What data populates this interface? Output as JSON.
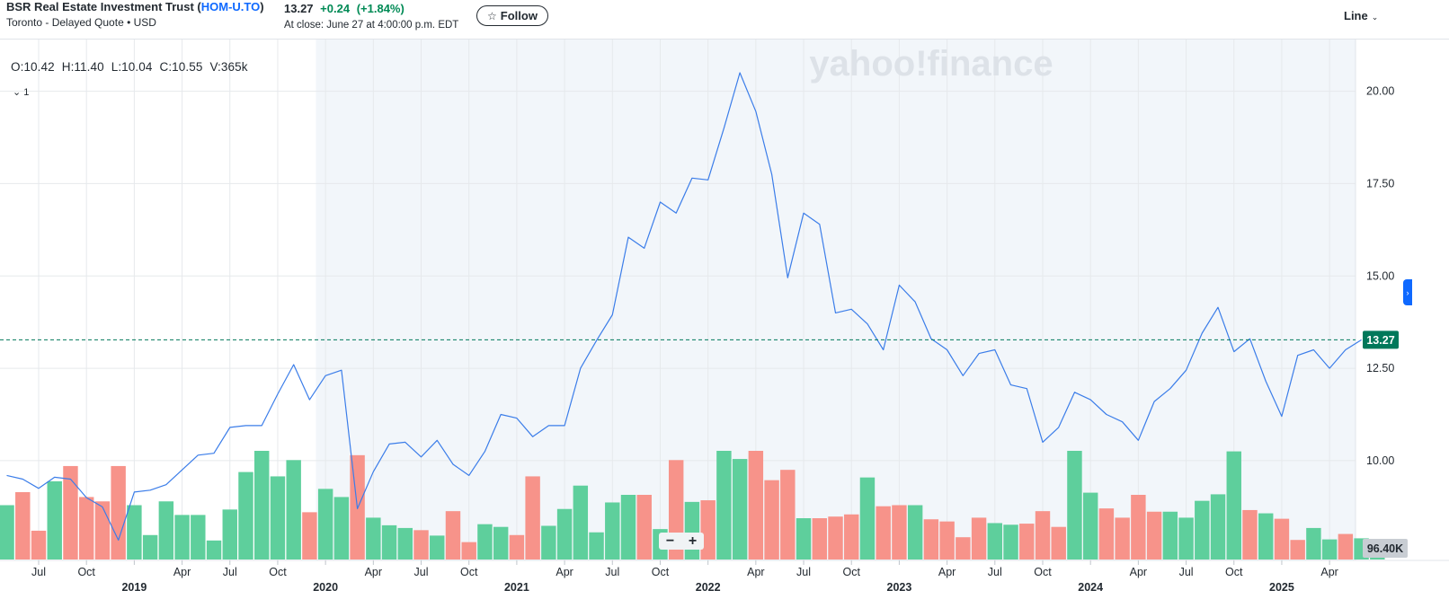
{
  "header": {
    "company": "BSR Real Estate Investment Trust (",
    "ticker": "HOM-U.TO",
    "company_suffix": ")",
    "exchange_info": "Toronto - Delayed Quote • USD",
    "price": "13.27",
    "change": "+0.24",
    "change_pct": "(+1.84%)",
    "close_info": "At close: June 27 at 4:00:00 p.m. EDT",
    "follow_label": "Follow",
    "chart_type_label": "Line"
  },
  "ohlc": {
    "open": "O:10.42",
    "high": "H:11.40",
    "low": "L:10.04",
    "close": "C:10.55",
    "volume": "V:365k"
  },
  "study_label": "1",
  "watermark": "yahoo!finance",
  "zoom": {
    "minus": "−",
    "plus": "+"
  },
  "colors": {
    "line": "#3b7de9",
    "vol_up": "#5ecf9c",
    "vol_down": "#f7938a",
    "shade": "#f2f6fa",
    "price_badge": "#00785a",
    "vol_badge": "#c8cdd3",
    "grid": "#e6e9ec"
  },
  "chart_data": {
    "type": "line",
    "y_axis": {
      "ticks": [
        "10.00",
        "12.50",
        "15.00",
        "17.50",
        "20.00"
      ],
      "range": [
        7.3,
        21.4
      ]
    },
    "last_price_label": "13.27",
    "last_price": 13.27,
    "volume_label": "96.40K",
    "x_ticks": [
      {
        "label": "Jul",
        "date": "2018-07"
      },
      {
        "label": "Oct",
        "date": "2018-10"
      },
      {
        "label": "2019",
        "date": "2019-01",
        "year": true
      },
      {
        "label": "Apr",
        "date": "2019-04"
      },
      {
        "label": "Jul",
        "date": "2019-07"
      },
      {
        "label": "Oct",
        "date": "2019-10"
      },
      {
        "label": "2020",
        "date": "2020-01",
        "year": true
      },
      {
        "label": "Apr",
        "date": "2020-04"
      },
      {
        "label": "Jul",
        "date": "2020-07"
      },
      {
        "label": "Oct",
        "date": "2020-10"
      },
      {
        "label": "2021",
        "date": "2021-01",
        "year": true
      },
      {
        "label": "Apr",
        "date": "2021-04"
      },
      {
        "label": "Jul",
        "date": "2021-07"
      },
      {
        "label": "Oct",
        "date": "2021-10"
      },
      {
        "label": "2022",
        "date": "2022-01",
        "year": true
      },
      {
        "label": "Apr",
        "date": "2022-04"
      },
      {
        "label": "Jul",
        "date": "2022-07"
      },
      {
        "label": "Oct",
        "date": "2022-10"
      },
      {
        "label": "2023",
        "date": "2023-01",
        "year": true
      },
      {
        "label": "Apr",
        "date": "2023-04"
      },
      {
        "label": "Jul",
        "date": "2023-07"
      },
      {
        "label": "Oct",
        "date": "2023-10"
      },
      {
        "label": "2024",
        "date": "2024-01",
        "year": true
      },
      {
        "label": "Apr",
        "date": "2024-04"
      },
      {
        "label": "Jul",
        "date": "2024-07"
      },
      {
        "label": "Oct",
        "date": "2024-10"
      },
      {
        "label": "2025",
        "date": "2025-01",
        "year": true
      },
      {
        "label": "Apr",
        "date": "2025-04"
      }
    ],
    "shaded_range": [
      "2020-01",
      "2025-06"
    ],
    "series": [
      {
        "type": "line",
        "points": [
          {
            "date": "2018-05",
            "value": 9.6
          },
          {
            "date": "2018-06",
            "value": 9.5
          },
          {
            "date": "2018-07",
            "value": 9.25
          },
          {
            "date": "2018-08",
            "value": 9.55
          },
          {
            "date": "2018-09",
            "value": 9.5
          },
          {
            "date": "2018-10",
            "value": 9.0
          },
          {
            "date": "2018-11",
            "value": 8.75
          },
          {
            "date": "2018-12",
            "value": 7.85
          },
          {
            "date": "2019-01",
            "value": 9.15
          },
          {
            "date": "2019-02",
            "value": 9.2
          },
          {
            "date": "2019-03",
            "value": 9.35
          },
          {
            "date": "2019-04",
            "value": 9.75
          },
          {
            "date": "2019-05",
            "value": 10.15
          },
          {
            "date": "2019-06",
            "value": 10.2
          },
          {
            "date": "2019-07",
            "value": 10.9
          },
          {
            "date": "2019-08",
            "value": 10.95
          },
          {
            "date": "2019-09",
            "value": 10.95
          },
          {
            "date": "2019-10",
            "value": 11.8
          },
          {
            "date": "2019-11",
            "value": 12.6
          },
          {
            "date": "2019-12",
            "value": 11.65
          },
          {
            "date": "2020-01",
            "value": 12.3
          },
          {
            "date": "2020-02",
            "value": 12.45
          },
          {
            "date": "2020-03",
            "value": 8.7
          },
          {
            "date": "2020-04",
            "value": 9.7
          },
          {
            "date": "2020-05",
            "value": 10.45
          },
          {
            "date": "2020-06",
            "value": 10.5
          },
          {
            "date": "2020-07",
            "value": 10.1
          },
          {
            "date": "2020-08",
            "value": 10.55
          },
          {
            "date": "2020-09",
            "value": 9.9
          },
          {
            "date": "2020-10",
            "value": 9.6
          },
          {
            "date": "2020-11",
            "value": 10.25
          },
          {
            "date": "2020-12",
            "value": 11.25
          },
          {
            "date": "2021-01",
            "value": 11.15
          },
          {
            "date": "2021-02",
            "value": 10.65
          },
          {
            "date": "2021-03",
            "value": 10.95
          },
          {
            "date": "2021-04",
            "value": 10.95
          },
          {
            "date": "2021-05",
            "value": 12.5
          },
          {
            "date": "2021-06",
            "value": 13.25
          },
          {
            "date": "2021-07",
            "value": 13.95
          },
          {
            "date": "2021-08",
            "value": 16.05
          },
          {
            "date": "2021-09",
            "value": 15.75
          },
          {
            "date": "2021-10",
            "value": 17.0
          },
          {
            "date": "2021-11",
            "value": 16.7
          },
          {
            "date": "2021-12",
            "value": 17.65
          },
          {
            "date": "2022-01",
            "value": 17.6
          },
          {
            "date": "2022-02",
            "value": 19.0
          },
          {
            "date": "2022-03",
            "value": 20.5
          },
          {
            "date": "2022-04",
            "value": 19.45
          },
          {
            "date": "2022-05",
            "value": 17.75
          },
          {
            "date": "2022-06",
            "value": 14.95
          },
          {
            "date": "2022-07",
            "value": 16.7
          },
          {
            "date": "2022-08",
            "value": 16.4
          },
          {
            "date": "2022-09",
            "value": 14.0
          },
          {
            "date": "2022-10",
            "value": 14.1
          },
          {
            "date": "2022-11",
            "value": 13.7
          },
          {
            "date": "2022-12",
            "value": 13.0
          },
          {
            "date": "2023-01",
            "value": 14.75
          },
          {
            "date": "2023-02",
            "value": 14.3
          },
          {
            "date": "2023-03",
            "value": 13.3
          },
          {
            "date": "2023-04",
            "value": 13.0
          },
          {
            "date": "2023-05",
            "value": 12.3
          },
          {
            "date": "2023-06",
            "value": 12.9
          },
          {
            "date": "2023-07",
            "value": 13.0
          },
          {
            "date": "2023-08",
            "value": 12.05
          },
          {
            "date": "2023-09",
            "value": 11.95
          },
          {
            "date": "2023-10",
            "value": 10.5
          },
          {
            "date": "2023-11",
            "value": 10.9
          },
          {
            "date": "2023-12",
            "value": 11.85
          },
          {
            "date": "2024-01",
            "value": 11.65
          },
          {
            "date": "2024-02",
            "value": 11.25
          },
          {
            "date": "2024-03",
            "value": 11.05
          },
          {
            "date": "2024-04",
            "value": 10.55
          },
          {
            "date": "2024-05",
            "value": 11.6
          },
          {
            "date": "2024-06",
            "value": 11.95
          },
          {
            "date": "2024-07",
            "value": 12.45
          },
          {
            "date": "2024-08",
            "value": 13.45
          },
          {
            "date": "2024-09",
            "value": 14.15
          },
          {
            "date": "2024-10",
            "value": 12.95
          },
          {
            "date": "2024-11",
            "value": 13.3
          },
          {
            "date": "2024-12",
            "value": 12.15
          },
          {
            "date": "2025-01",
            "value": 11.2
          },
          {
            "date": "2025-02",
            "value": 12.85
          },
          {
            "date": "2025-03",
            "value": 13.0
          },
          {
            "date": "2025-04",
            "value": 12.5
          },
          {
            "date": "2025-05",
            "value": 13.0
          },
          {
            "date": "2025-06",
            "value": 13.27
          }
        ]
      },
      {
        "type": "bar",
        "volume_max": 1000,
        "bars": [
          {
            "date": "2018-05",
            "value": 500,
            "dir": "up"
          },
          {
            "date": "2018-06",
            "value": 620,
            "dir": "down"
          },
          {
            "date": "2018-07",
            "value": 265,
            "dir": "down"
          },
          {
            "date": "2018-08",
            "value": 720,
            "dir": "up"
          },
          {
            "date": "2018-09",
            "value": 860,
            "dir": "down"
          },
          {
            "date": "2018-10",
            "value": 575,
            "dir": "down"
          },
          {
            "date": "2018-11",
            "value": 535,
            "dir": "down"
          },
          {
            "date": "2018-12",
            "value": 860,
            "dir": "down"
          },
          {
            "date": "2019-01",
            "value": 500,
            "dir": "up"
          },
          {
            "date": "2019-02",
            "value": 225,
            "dir": "up"
          },
          {
            "date": "2019-03",
            "value": 535,
            "dir": "up"
          },
          {
            "date": "2019-04",
            "value": 410,
            "dir": "up"
          },
          {
            "date": "2019-05",
            "value": 410,
            "dir": "up"
          },
          {
            "date": "2019-06",
            "value": 175,
            "dir": "up"
          },
          {
            "date": "2019-07",
            "value": 460,
            "dir": "up"
          },
          {
            "date": "2019-08",
            "value": 805,
            "dir": "up"
          },
          {
            "date": "2019-09",
            "value": 1000,
            "dir": "up"
          },
          {
            "date": "2019-10",
            "value": 765,
            "dir": "up"
          },
          {
            "date": "2019-11",
            "value": 915,
            "dir": "up"
          },
          {
            "date": "2019-12",
            "value": 435,
            "dir": "down"
          },
          {
            "date": "2020-01",
            "value": 650,
            "dir": "up"
          },
          {
            "date": "2020-02",
            "value": 575,
            "dir": "up"
          },
          {
            "date": "2020-03",
            "value": 960,
            "dir": "down"
          },
          {
            "date": "2020-04",
            "value": 385,
            "dir": "up"
          },
          {
            "date": "2020-05",
            "value": 315,
            "dir": "up"
          },
          {
            "date": "2020-06",
            "value": 290,
            "dir": "up"
          },
          {
            "date": "2020-07",
            "value": 270,
            "dir": "down"
          },
          {
            "date": "2020-08",
            "value": 220,
            "dir": "up"
          },
          {
            "date": "2020-09",
            "value": 445,
            "dir": "down"
          },
          {
            "date": "2020-10",
            "value": 160,
            "dir": "down"
          },
          {
            "date": "2020-11",
            "value": 325,
            "dir": "up"
          },
          {
            "date": "2020-12",
            "value": 300,
            "dir": "up"
          },
          {
            "date": "2021-01",
            "value": 225,
            "dir": "down"
          },
          {
            "date": "2021-02",
            "value": 765,
            "dir": "down"
          },
          {
            "date": "2021-03",
            "value": 310,
            "dir": "up"
          },
          {
            "date": "2021-04",
            "value": 465,
            "dir": "up"
          },
          {
            "date": "2021-05",
            "value": 680,
            "dir": "up"
          },
          {
            "date": "2021-06",
            "value": 250,
            "dir": "up"
          },
          {
            "date": "2021-07",
            "value": 525,
            "dir": "up"
          },
          {
            "date": "2021-08",
            "value": 595,
            "dir": "up"
          },
          {
            "date": "2021-09",
            "value": 595,
            "dir": "down"
          },
          {
            "date": "2021-10",
            "value": 280,
            "dir": "up"
          },
          {
            "date": "2021-11",
            "value": 915,
            "dir": "down"
          },
          {
            "date": "2021-12",
            "value": 530,
            "dir": "up"
          },
          {
            "date": "2022-01",
            "value": 545,
            "dir": "down"
          },
          {
            "date": "2022-02",
            "value": 1000,
            "dir": "up"
          },
          {
            "date": "2022-03",
            "value": 925,
            "dir": "up"
          },
          {
            "date": "2022-04",
            "value": 1000,
            "dir": "down"
          },
          {
            "date": "2022-05",
            "value": 730,
            "dir": "down"
          },
          {
            "date": "2022-06",
            "value": 825,
            "dir": "down"
          },
          {
            "date": "2022-07",
            "value": 380,
            "dir": "up"
          },
          {
            "date": "2022-08",
            "value": 380,
            "dir": "down"
          },
          {
            "date": "2022-09",
            "value": 395,
            "dir": "down"
          },
          {
            "date": "2022-10",
            "value": 415,
            "dir": "down"
          },
          {
            "date": "2022-11",
            "value": 755,
            "dir": "up"
          },
          {
            "date": "2022-12",
            "value": 490,
            "dir": "down"
          },
          {
            "date": "2023-01",
            "value": 500,
            "dir": "down"
          },
          {
            "date": "2023-02",
            "value": 500,
            "dir": "up"
          },
          {
            "date": "2023-03",
            "value": 370,
            "dir": "down"
          },
          {
            "date": "2023-04",
            "value": 350,
            "dir": "down"
          },
          {
            "date": "2023-05",
            "value": 205,
            "dir": "down"
          },
          {
            "date": "2023-06",
            "value": 385,
            "dir": "down"
          },
          {
            "date": "2023-07",
            "value": 335,
            "dir": "up"
          },
          {
            "date": "2023-08",
            "value": 320,
            "dir": "up"
          },
          {
            "date": "2023-09",
            "value": 330,
            "dir": "down"
          },
          {
            "date": "2023-10",
            "value": 445,
            "dir": "down"
          },
          {
            "date": "2023-11",
            "value": 300,
            "dir": "down"
          },
          {
            "date": "2023-12",
            "value": 1000,
            "dir": "up"
          },
          {
            "date": "2024-01",
            "value": 615,
            "dir": "up"
          },
          {
            "date": "2024-02",
            "value": 470,
            "dir": "down"
          },
          {
            "date": "2024-03",
            "value": 385,
            "dir": "down"
          },
          {
            "date": "2024-04",
            "value": 595,
            "dir": "down"
          },
          {
            "date": "2024-05",
            "value": 440,
            "dir": "down"
          },
          {
            "date": "2024-06",
            "value": 440,
            "dir": "up"
          },
          {
            "date": "2024-07",
            "value": 385,
            "dir": "up"
          },
          {
            "date": "2024-08",
            "value": 540,
            "dir": "up"
          },
          {
            "date": "2024-09",
            "value": 600,
            "dir": "up"
          },
          {
            "date": "2024-10",
            "value": 995,
            "dir": "up"
          },
          {
            "date": "2024-11",
            "value": 455,
            "dir": "down"
          },
          {
            "date": "2024-12",
            "value": 425,
            "dir": "up"
          },
          {
            "date": "2025-01",
            "value": 375,
            "dir": "down"
          },
          {
            "date": "2025-02",
            "value": 180,
            "dir": "down"
          },
          {
            "date": "2025-03",
            "value": 290,
            "dir": "up"
          },
          {
            "date": "2025-04",
            "value": 185,
            "dir": "up"
          },
          {
            "date": "2025-05",
            "value": 235,
            "dir": "down"
          },
          {
            "date": "2025-06",
            "value": 195,
            "dir": "up"
          },
          {
            "date": "2025-07",
            "value": 60,
            "dir": "up"
          }
        ]
      }
    ]
  }
}
